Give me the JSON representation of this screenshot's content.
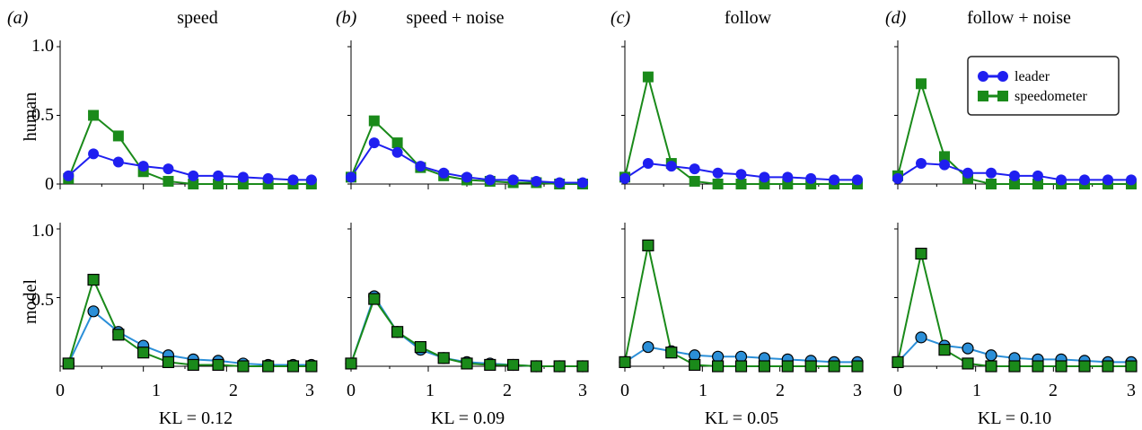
{
  "figure": {
    "row_labels": [
      "human",
      "model"
    ],
    "xlabel": "",
    "x_ticks": [
      "0",
      "1",
      "2",
      "3"
    ],
    "y_ticks": [
      "0",
      "0.5",
      "1.0"
    ],
    "colors": {
      "leader_human": "#1f1ff0",
      "speedometer": "#1a8a1a",
      "leader_model": "#2b8fd8",
      "marker_edge_model": "#000000"
    }
  },
  "legend": {
    "entries": [
      {
        "label": "leader",
        "color": "#1f1ff0",
        "marker": "circle"
      },
      {
        "label": "speedometer",
        "color": "#1a8a1a",
        "marker": "square"
      }
    ],
    "placement": "top-right of panel d (human row)"
  },
  "chart_data": [
    {
      "type": "line",
      "panel_letter": "(a)",
      "title": "speed",
      "kl": "KL = 0.12",
      "x": [
        0.1,
        0.4,
        0.7,
        1.0,
        1.3,
        1.6,
        1.9,
        2.2,
        2.5,
        2.8,
        3.1
      ],
      "xlim": [
        0,
        3
      ],
      "ylim": [
        0,
        1
      ],
      "human": {
        "leader": [
          0.06,
          0.22,
          0.16,
          0.13,
          0.11,
          0.06,
          0.06,
          0.05,
          0.04,
          0.03,
          0.03
        ],
        "speedometer": [
          0.04,
          0.5,
          0.35,
          0.09,
          0.02,
          0.0,
          0.0,
          0.0,
          0.0,
          0.0,
          0.0
        ]
      },
      "model": {
        "leader": [
          0.02,
          0.4,
          0.25,
          0.15,
          0.08,
          0.05,
          0.04,
          0.02,
          0.01,
          0.01,
          0.01
        ],
        "speedometer": [
          0.02,
          0.63,
          0.23,
          0.1,
          0.03,
          0.01,
          0.01,
          0.0,
          0.0,
          0.0,
          0.0
        ]
      }
    },
    {
      "type": "line",
      "panel_letter": "(b)",
      "title": "speed + noise",
      "kl": "KL = 0.09",
      "x": [
        0.0,
        0.3,
        0.6,
        0.9,
        1.2,
        1.5,
        1.8,
        2.1,
        2.4,
        2.7,
        3.0
      ],
      "xlim": [
        0,
        3
      ],
      "ylim": [
        0,
        1
      ],
      "human": {
        "leader": [
          0.05,
          0.3,
          0.23,
          0.13,
          0.08,
          0.05,
          0.03,
          0.03,
          0.02,
          0.01,
          0.01
        ],
        "speedometer": [
          0.05,
          0.46,
          0.3,
          0.12,
          0.06,
          0.03,
          0.02,
          0.01,
          0.01,
          0.0,
          0.0
        ]
      },
      "model": {
        "leader": [
          0.02,
          0.51,
          0.25,
          0.12,
          0.06,
          0.03,
          0.02,
          0.01,
          0.0,
          0.0,
          0.0
        ],
        "speedometer": [
          0.02,
          0.49,
          0.25,
          0.14,
          0.06,
          0.02,
          0.01,
          0.01,
          0.0,
          0.0,
          0.0
        ]
      }
    },
    {
      "type": "line",
      "panel_letter": "(c)",
      "title": "follow",
      "kl": "KL = 0.05",
      "x": [
        0.0,
        0.3,
        0.6,
        0.9,
        1.2,
        1.5,
        1.8,
        2.1,
        2.4,
        2.7,
        3.0
      ],
      "xlim": [
        0,
        3
      ],
      "ylim": [
        0,
        1
      ],
      "human": {
        "leader": [
          0.04,
          0.15,
          0.13,
          0.11,
          0.08,
          0.07,
          0.05,
          0.05,
          0.04,
          0.03,
          0.03
        ],
        "speedometer": [
          0.05,
          0.78,
          0.15,
          0.02,
          0.0,
          0.0,
          0.0,
          0.0,
          0.0,
          0.0,
          0.0
        ]
      },
      "model": {
        "leader": [
          0.03,
          0.14,
          0.11,
          0.08,
          0.07,
          0.07,
          0.06,
          0.05,
          0.04,
          0.03,
          0.03
        ],
        "speedometer": [
          0.03,
          0.88,
          0.1,
          0.01,
          0.0,
          0.0,
          0.0,
          0.0,
          0.0,
          0.0,
          0.0
        ]
      }
    },
    {
      "type": "line",
      "panel_letter": "(d)",
      "title": "follow + noise",
      "kl": "KL = 0.10",
      "x": [
        0.0,
        0.3,
        0.6,
        0.9,
        1.2,
        1.5,
        1.8,
        2.1,
        2.4,
        2.7,
        3.0
      ],
      "xlim": [
        0,
        3
      ],
      "ylim": [
        0,
        1
      ],
      "human": {
        "leader": [
          0.04,
          0.15,
          0.14,
          0.08,
          0.08,
          0.06,
          0.06,
          0.03,
          0.03,
          0.03,
          0.03
        ],
        "speedometer": [
          0.06,
          0.73,
          0.2,
          0.04,
          0.0,
          0.0,
          0.0,
          0.0,
          0.0,
          0.0,
          0.0
        ]
      },
      "model": {
        "leader": [
          0.03,
          0.21,
          0.15,
          0.13,
          0.08,
          0.06,
          0.05,
          0.05,
          0.04,
          0.03,
          0.03
        ],
        "speedometer": [
          0.03,
          0.82,
          0.12,
          0.02,
          0.0,
          0.0,
          0.0,
          0.0,
          0.0,
          0.0,
          0.0
        ]
      }
    }
  ]
}
